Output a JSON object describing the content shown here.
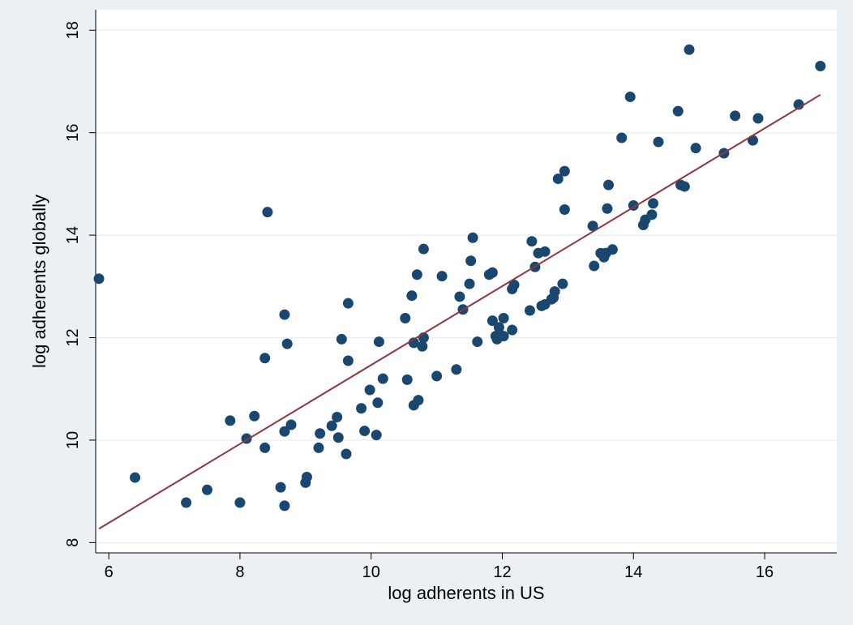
{
  "chart_data": {
    "type": "scatter",
    "xlabel": "log adherents in US",
    "ylabel": "log adherents globally",
    "xlim": [
      5.8,
      17.1
    ],
    "ylim": [
      7.8,
      18.4
    ],
    "xticks": [
      6,
      8,
      10,
      12,
      14,
      16
    ],
    "yticks": [
      8,
      10,
      12,
      14,
      16,
      18
    ],
    "grid": true,
    "colors": {
      "background": "#eaf0f3",
      "plot_area": "#ffffff",
      "grid": "#eaf0f3",
      "points": "#1a476f",
      "fit_line": "#90353b"
    },
    "fit_line": {
      "x": [
        5.85,
        16.85
      ],
      "y": [
        8.27,
        16.74
      ]
    },
    "points": [
      [
        5.85,
        13.15
      ],
      [
        6.4,
        9.27
      ],
      [
        7.18,
        8.78
      ],
      [
        7.5,
        9.03
      ],
      [
        7.85,
        10.38
      ],
      [
        8.0,
        8.78
      ],
      [
        8.1,
        10.03
      ],
      [
        8.22,
        10.47
      ],
      [
        8.38,
        9.85
      ],
      [
        8.38,
        11.6
      ],
      [
        8.42,
        14.45
      ],
      [
        8.62,
        9.08
      ],
      [
        8.68,
        8.72
      ],
      [
        8.68,
        10.17
      ],
      [
        8.68,
        12.45
      ],
      [
        8.72,
        11.88
      ],
      [
        8.78,
        10.3
      ],
      [
        9.0,
        9.17
      ],
      [
        9.02,
        9.28
      ],
      [
        9.2,
        9.85
      ],
      [
        9.22,
        10.13
      ],
      [
        9.4,
        10.28
      ],
      [
        9.48,
        10.45
      ],
      [
        9.5,
        10.05
      ],
      [
        9.55,
        11.97
      ],
      [
        9.62,
        9.73
      ],
      [
        9.65,
        11.55
      ],
      [
        9.65,
        12.67
      ],
      [
        9.85,
        10.62
      ],
      [
        9.9,
        10.18
      ],
      [
        9.98,
        10.98
      ],
      [
        10.08,
        10.1
      ],
      [
        10.1,
        10.73
      ],
      [
        10.12,
        11.92
      ],
      [
        10.18,
        11.2
      ],
      [
        10.52,
        12.38
      ],
      [
        10.55,
        11.18
      ],
      [
        10.62,
        12.82
      ],
      [
        10.65,
        10.68
      ],
      [
        10.65,
        11.9
      ],
      [
        10.7,
        13.23
      ],
      [
        10.72,
        10.78
      ],
      [
        10.78,
        11.83
      ],
      [
        10.8,
        12.0
      ],
      [
        10.8,
        13.73
      ],
      [
        11.0,
        11.25
      ],
      [
        11.08,
        13.2
      ],
      [
        11.3,
        11.38
      ],
      [
        11.35,
        12.8
      ],
      [
        11.4,
        12.55
      ],
      [
        11.5,
        13.05
      ],
      [
        11.52,
        13.5
      ],
      [
        11.55,
        13.95
      ],
      [
        11.62,
        11.92
      ],
      [
        11.8,
        13.23
      ],
      [
        11.85,
        12.33
      ],
      [
        11.85,
        13.27
      ],
      [
        11.9,
        12.03
      ],
      [
        11.92,
        11.97
      ],
      [
        11.95,
        12.2
      ],
      [
        12.02,
        12.38
      ],
      [
        12.02,
        12.03
      ],
      [
        12.15,
        12.15
      ],
      [
        12.15,
        12.95
      ],
      [
        12.18,
        13.03
      ],
      [
        12.42,
        12.53
      ],
      [
        12.45,
        13.88
      ],
      [
        12.5,
        13.38
      ],
      [
        12.55,
        13.65
      ],
      [
        12.6,
        12.62
      ],
      [
        12.65,
        12.65
      ],
      [
        12.65,
        13.68
      ],
      [
        12.75,
        12.75
      ],
      [
        12.78,
        12.78
      ],
      [
        12.8,
        12.9
      ],
      [
        12.85,
        15.1
      ],
      [
        12.92,
        13.05
      ],
      [
        12.95,
        15.25
      ],
      [
        12.95,
        14.5
      ],
      [
        13.38,
        14.18
      ],
      [
        13.4,
        13.4
      ],
      [
        13.5,
        13.65
      ],
      [
        13.55,
        13.57
      ],
      [
        13.58,
        13.65
      ],
      [
        13.6,
        14.52
      ],
      [
        13.62,
        14.98
      ],
      [
        13.68,
        13.72
      ],
      [
        13.82,
        15.9
      ],
      [
        13.95,
        16.7
      ],
      [
        14.0,
        14.58
      ],
      [
        14.15,
        14.2
      ],
      [
        14.18,
        14.3
      ],
      [
        14.28,
        14.4
      ],
      [
        14.3,
        14.62
      ],
      [
        14.38,
        15.82
      ],
      [
        14.68,
        16.42
      ],
      [
        14.72,
        14.98
      ],
      [
        14.78,
        14.95
      ],
      [
        14.85,
        17.62
      ],
      [
        14.95,
        15.7
      ],
      [
        15.38,
        15.6
      ],
      [
        15.55,
        16.33
      ],
      [
        15.82,
        15.85
      ],
      [
        15.9,
        16.28
      ],
      [
        16.52,
        16.55
      ],
      [
        16.85,
        17.3
      ]
    ]
  }
}
